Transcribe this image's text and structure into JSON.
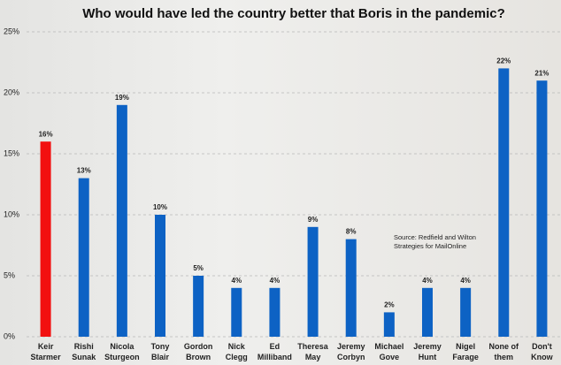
{
  "chart_data": {
    "type": "bar",
    "title": "Who would have led the country better that Boris in the pandemic?",
    "categories": [
      "Keir Starmer",
      "Rishi Sunak",
      "Nicola Sturgeon",
      "Tony Blair",
      "Gordon Brown",
      "Nick Clegg",
      "Ed Milliband",
      "Theresa May",
      "Jeremy Corbyn",
      "Michael Gove",
      "Jeremy Hunt",
      "Nigel Farage",
      "None of them",
      "Don't Know"
    ],
    "values": [
      16,
      13,
      19,
      10,
      5,
      4,
      4,
      9,
      8,
      2,
      4,
      4,
      22,
      21
    ],
    "value_labels": [
      "16%",
      "13%",
      "19%",
      "10%",
      "5%",
      "4%",
      "4%",
      "9%",
      "8%",
      "2%",
      "4%",
      "4%",
      "22%",
      "21%"
    ],
    "colors": [
      "#f21010",
      "#0d62c4",
      "#0d62c4",
      "#0d62c4",
      "#0d62c4",
      "#0d62c4",
      "#0d62c4",
      "#0d62c4",
      "#0d62c4",
      "#0d62c4",
      "#0d62c4",
      "#0d62c4",
      "#0d62c4",
      "#0d62c4"
    ],
    "ylim": [
      0,
      25
    ],
    "yticks": [
      {
        "value": 0,
        "label": "0%"
      },
      {
        "value": 5,
        "label": "5%"
      },
      {
        "value": 10,
        "label": "10%"
      },
      {
        "value": 15,
        "label": "15%"
      },
      {
        "value": 20,
        "label": "20%"
      },
      {
        "value": 25,
        "label": "25%"
      }
    ],
    "grid": true,
    "annotation": "Source: Redfield and Wilton Strategies for MailOnline"
  }
}
